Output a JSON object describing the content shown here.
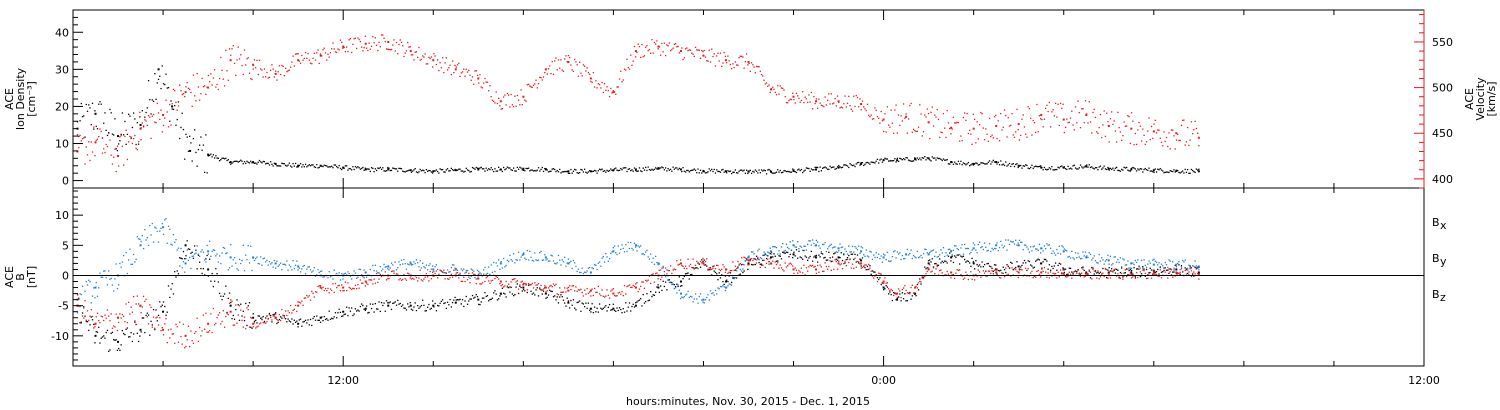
{
  "chart_data": [
    {
      "type": "scatter",
      "panel": "ion-density-velocity",
      "x_unit": "hours from Nov. 30, 2015 00:00",
      "xlim": [
        6,
        36
      ],
      "left_axis": {
        "label_lines": [
          "ACE",
          "Ion Density",
          "[cm⁻³]"
        ],
        "ylim": [
          -2,
          46
        ],
        "ticks": [
          0,
          10,
          20,
          30,
          40
        ],
        "color": "#000000"
      },
      "right_axis": {
        "label_lines": [
          "ACE",
          "Velocity",
          "[km/s]"
        ],
        "ylim": [
          390,
          585
        ],
        "ticks": [
          400,
          450,
          500,
          550
        ],
        "color": "#e41a1c"
      },
      "series": [
        {
          "axis": "left",
          "color": "#000000",
          "x": [
            6.1,
            6.5,
            7.0,
            7.5,
            7.9,
            8.2,
            8.6,
            9.0,
            9.5,
            10.0,
            10.5,
            11.0,
            11.5,
            12.0,
            12.5,
            13.0,
            13.5,
            14.0,
            14.5,
            15.0,
            15.5,
            16.0,
            16.5,
            17.0,
            17.5,
            18.0,
            18.5,
            19.0,
            19.5,
            20.0,
            20.5,
            21.0,
            21.5,
            22.0,
            22.5,
            23.0,
            23.5,
            24.0,
            24.3,
            24.7,
            25.0,
            25.5,
            26.0,
            26.5,
            27.0,
            27.5,
            28.0,
            28.5,
            29.0,
            29.5,
            30.0,
            30.5,
            31.0
          ],
          "y": [
            14,
            18,
            12,
            15,
            30,
            20,
            8,
            7,
            5,
            5,
            4.5,
            4,
            4,
            3.5,
            3,
            3,
            2.8,
            2.5,
            2.8,
            3,
            3,
            3.2,
            3,
            2.5,
            2.5,
            2.8,
            3,
            3.2,
            3,
            2.6,
            2.5,
            2.4,
            2.4,
            2.6,
            3,
            3.5,
            4.5,
            5.5,
            5.5,
            5.8,
            6,
            5,
            4.5,
            5,
            4,
            3.5,
            3.5,
            3.8,
            3.2,
            3,
            2.8,
            2.6,
            2.5
          ]
        },
        {
          "axis": "right",
          "color": "#e41a1c",
          "x": [
            6.1,
            6.5,
            7.0,
            7.5,
            8.0,
            8.5,
            9.0,
            9.5,
            10.0,
            10.5,
            11.0,
            11.5,
            12.0,
            12.5,
            13.0,
            13.5,
            14.0,
            14.5,
            15.0,
            15.5,
            16.0,
            16.5,
            17.0,
            17.5,
            18.0,
            18.5,
            19.0,
            19.5,
            20.0,
            20.5,
            21.0,
            21.5,
            22.0,
            22.5,
            23.0,
            23.5,
            24.0,
            24.5,
            25.0,
            25.5,
            26.0,
            26.5,
            27.0,
            27.5,
            28.0,
            28.5,
            29.0,
            29.5,
            30.0,
            30.5,
            31.0
          ],
          "y": [
            430,
            440,
            425,
            455,
            470,
            495,
            500,
            530,
            525,
            515,
            530,
            535,
            545,
            548,
            550,
            540,
            530,
            520,
            510,
            485,
            490,
            520,
            528,
            510,
            495,
            540,
            545,
            540,
            535,
            530,
            528,
            498,
            490,
            485,
            485,
            482,
            465,
            468,
            462,
            456,
            455,
            458,
            460,
            470,
            465,
            470,
            458,
            455,
            452,
            450,
            445
          ]
        }
      ]
    },
    {
      "type": "scatter",
      "panel": "magnetic-field",
      "x_unit": "hours from Nov. 30, 2015 00:00",
      "xlim": [
        6,
        36
      ],
      "left_axis": {
        "label_lines": [
          "ACE",
          "B",
          "[nT]"
        ],
        "ylim": [
          -15,
          14.5
        ],
        "ticks": [
          -10,
          -5,
          0,
          5,
          10
        ],
        "color": "#000000"
      },
      "zero_line": true,
      "series": [
        {
          "name": "Bx",
          "color": "#000000",
          "x": [
            6.1,
            6.5,
            7.0,
            7.5,
            8.0,
            8.5,
            9.0,
            9.5,
            10.0,
            10.5,
            11.0,
            11.5,
            12.0,
            12.5,
            13.0,
            13.5,
            14.0,
            14.5,
            15.0,
            15.5,
            16.0,
            16.5,
            17.0,
            17.5,
            18.0,
            18.5,
            19.0,
            19.5,
            20.0,
            20.5,
            21.0,
            21.5,
            22.0,
            22.5,
            23.0,
            23.5,
            24.0,
            24.3,
            24.7,
            25.0,
            25.5,
            26.0,
            26.5,
            27.0,
            27.5,
            28.0,
            28.5,
            29.0,
            29.5,
            30.0,
            30.5,
            31.0
          ],
          "y": [
            -5,
            -10,
            -11,
            -9,
            -6,
            5,
            1,
            -5,
            -7,
            -7,
            -8,
            -7,
            -6,
            -5.5,
            -5,
            -5,
            -5,
            -4.5,
            -4,
            -3,
            -2,
            -3,
            -4.5,
            -5.5,
            -5.5,
            -5,
            -2,
            -1,
            2,
            -1,
            2,
            3,
            3.5,
            3,
            3,
            2.5,
            -2,
            -4,
            -3,
            2,
            3,
            2,
            1,
            1.5,
            2,
            1,
            0.5,
            0.5,
            0.5,
            0.8,
            1,
            0.5
          ]
        },
        {
          "name": "By",
          "color": "#1f7fd6",
          "x": [
            6.1,
            6.5,
            7.0,
            7.5,
            8.0,
            8.5,
            9.0,
            9.5,
            10.0,
            10.5,
            11.0,
            11.5,
            12.0,
            12.5,
            13.0,
            13.5,
            14.0,
            14.5,
            15.0,
            15.5,
            16.0,
            16.5,
            17.0,
            17.5,
            18.0,
            18.5,
            19.0,
            19.5,
            20.0,
            20.5,
            21.0,
            21.5,
            22.0,
            22.5,
            23.0,
            23.5,
            24.0,
            24.5,
            25.0,
            25.5,
            26.0,
            26.5,
            27.0,
            27.5,
            28.0,
            28.5,
            29.0,
            29.5,
            30.0,
            30.5,
            31.0
          ],
          "y": [
            -4,
            -2,
            0,
            5,
            8,
            2,
            4,
            3,
            3,
            2,
            1.5,
            0,
            0,
            0.5,
            1.5,
            2,
            1,
            1,
            0,
            2,
            3.5,
            3,
            2,
            0.5,
            4,
            5,
            2,
            -3,
            -4,
            -2,
            3,
            4,
            5,
            5,
            4.5,
            4,
            3,
            3.5,
            3.5,
            4,
            4.5,
            5,
            5,
            4.5,
            4,
            3,
            2.5,
            2,
            1.8,
            1.8,
            1.5
          ]
        },
        {
          "name": "Bz",
          "color": "#e41a1c",
          "x": [
            6.1,
            6.5,
            7.0,
            7.5,
            8.0,
            8.5,
            9.0,
            9.5,
            10.0,
            10.5,
            11.0,
            11.5,
            12.0,
            12.5,
            13.0,
            13.5,
            14.0,
            14.5,
            15.0,
            15.5,
            16.0,
            16.5,
            17.0,
            17.5,
            18.0,
            18.5,
            19.0,
            19.5,
            20.0,
            20.5,
            21.0,
            21.5,
            22.0,
            22.5,
            23.0,
            23.5,
            24.0,
            24.3,
            24.7,
            25.0,
            25.5,
            26.0,
            26.5,
            27.0,
            27.5,
            28.0,
            28.5,
            29.0,
            29.5,
            30.0,
            30.5,
            31.0
          ],
          "y": [
            -5,
            -8,
            -7,
            -5,
            -9,
            -10,
            -8,
            -6,
            -8,
            -7,
            -5,
            -2,
            -2,
            -1,
            0,
            0,
            0,
            0,
            -0.5,
            -1,
            -1.5,
            -2,
            -2.5,
            -2.5,
            -3,
            -2,
            0,
            2,
            2,
            1,
            2.5,
            2,
            1,
            1,
            2,
            2,
            -1,
            -3,
            -2,
            1,
            0.5,
            0,
            0.5,
            0.5,
            0.5,
            0.3,
            0.3,
            0.3,
            0.2,
            0.3,
            0.5,
            0.2
          ]
        }
      ],
      "legend": [
        {
          "text": "B",
          "sub": "x",
          "color": "#000000"
        },
        {
          "text": "B",
          "sub": "y",
          "color": "#1f7fd6"
        },
        {
          "text": "B",
          "sub": "z",
          "color": "#e41a1c"
        }
      ]
    }
  ],
  "x_axis": {
    "tick_labels": [
      {
        "hour": 12,
        "label": "12:00"
      },
      {
        "hour": 24,
        "label": "0:00"
      },
      {
        "hour": 36,
        "label": "12:00"
      }
    ],
    "minor_hours": [
      8,
      10,
      14,
      16,
      18,
      20,
      22,
      26,
      28,
      30,
      32,
      34
    ],
    "title": "hours:minutes, Nov. 30, 2015 - Dec. 1, 2015"
  }
}
